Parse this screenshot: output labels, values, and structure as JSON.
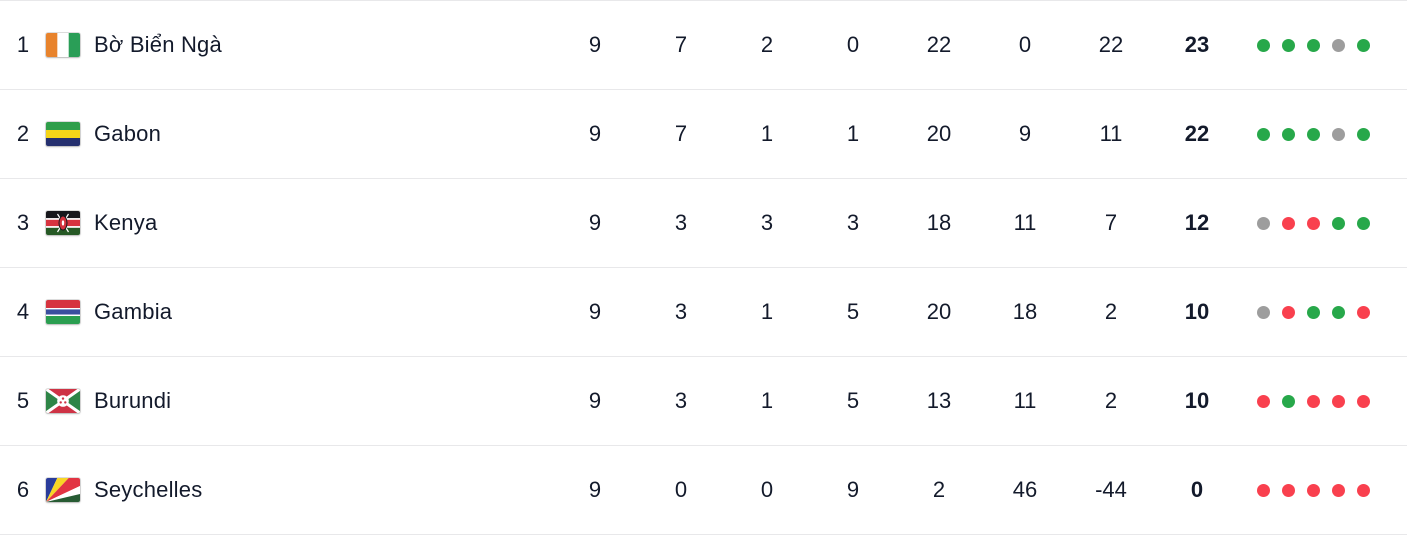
{
  "colors": {
    "text": "#131a2b",
    "divider": "#e8e8ea",
    "win": "#27a84a",
    "draw": "#9d9d9d",
    "loss": "#f9404e",
    "background": "#ffffff"
  },
  "rows": [
    {
      "pos": "1",
      "team": "Bờ Biển Ngà",
      "flag": "ivory-coast-flag",
      "played": "9",
      "won": "7",
      "drawn": "2",
      "lost": "0",
      "goals_for": "22",
      "goals_against": "0",
      "goal_diff": "22",
      "points": "23",
      "form": [
        "W",
        "W",
        "W",
        "D",
        "W"
      ]
    },
    {
      "pos": "2",
      "team": "Gabon",
      "flag": "gabon-flag",
      "played": "9",
      "won": "7",
      "drawn": "1",
      "lost": "1",
      "goals_for": "20",
      "goals_against": "9",
      "goal_diff": "11",
      "points": "22",
      "form": [
        "W",
        "W",
        "W",
        "D",
        "W"
      ]
    },
    {
      "pos": "3",
      "team": "Kenya",
      "flag": "kenya-flag",
      "played": "9",
      "won": "3",
      "drawn": "3",
      "lost": "3",
      "goals_for": "18",
      "goals_against": "11",
      "goal_diff": "7",
      "points": "12",
      "form": [
        "D",
        "L",
        "L",
        "W",
        "W"
      ]
    },
    {
      "pos": "4",
      "team": "Gambia",
      "flag": "gambia-flag",
      "played": "9",
      "won": "3",
      "drawn": "1",
      "lost": "5",
      "goals_for": "20",
      "goals_against": "18",
      "goal_diff": "2",
      "points": "10",
      "form": [
        "D",
        "L",
        "W",
        "W",
        "L"
      ]
    },
    {
      "pos": "5",
      "team": "Burundi",
      "flag": "burundi-flag",
      "played": "9",
      "won": "3",
      "drawn": "1",
      "lost": "5",
      "goals_for": "13",
      "goals_against": "11",
      "goal_diff": "2",
      "points": "10",
      "form": [
        "L",
        "W",
        "L",
        "L",
        "L"
      ]
    },
    {
      "pos": "6",
      "team": "Seychelles",
      "flag": "seychelles-flag",
      "played": "9",
      "won": "0",
      "drawn": "0",
      "lost": "9",
      "goals_for": "2",
      "goals_against": "46",
      "goal_diff": "-44",
      "points": "0",
      "form": [
        "L",
        "L",
        "L",
        "L",
        "L"
      ]
    }
  ]
}
